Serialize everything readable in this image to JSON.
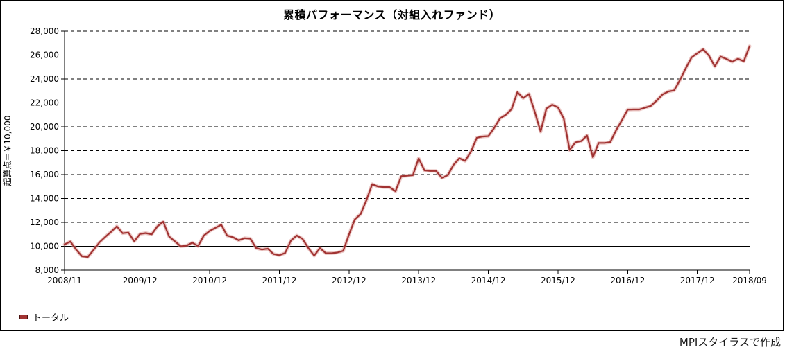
{
  "window": {
    "footer_credit": "MPIスタイラスで作成"
  },
  "chart": {
    "title": "累積パフォーマンス（対組入れファンド）",
    "y_axis_label": "起算点＝￥10,000",
    "legend": [
      {
        "label": "トータル",
        "color": "#a13332"
      }
    ],
    "colors": {
      "line": "#a13332",
      "line_glow": "#dc9b97",
      "grid": "#000000",
      "text": "#000000"
    }
  },
  "chart_data": {
    "type": "line",
    "title": "累積パフォーマンス（対組入れファンド）",
    "xlabel": "",
    "ylabel": "起算点＝￥10,000",
    "x_start": "2008/11",
    "x_end": "2018/09",
    "frequency": "monthly",
    "ylim": [
      8000,
      28000
    ],
    "baseline_value": 10000,
    "grid": "dashed-horizontal",
    "legend_position": "bottom-left",
    "y_ticks": [
      {
        "value": 28000,
        "label": "28,000"
      },
      {
        "value": 26000,
        "label": "26,000"
      },
      {
        "value": 24000,
        "label": "24,000"
      },
      {
        "value": 22000,
        "label": "22,000"
      },
      {
        "value": 20000,
        "label": "20,000"
      },
      {
        "value": 18000,
        "label": "18,000"
      },
      {
        "value": 16000,
        "label": "16,000"
      },
      {
        "value": 14000,
        "label": "14,000"
      },
      {
        "value": 12000,
        "label": "12,000"
      },
      {
        "value": 10000,
        "label": "10,000"
      },
      {
        "value": 8000,
        "label": "8,000"
      }
    ],
    "x_ticks": [
      {
        "index": 0,
        "label": "2008/11"
      },
      {
        "index": 13,
        "label": "2009/12"
      },
      {
        "index": 25,
        "label": "2010/12"
      },
      {
        "index": 37,
        "label": "2011/12"
      },
      {
        "index": 49,
        "label": "2012/12"
      },
      {
        "index": 61,
        "label": "2013/12"
      },
      {
        "index": 73,
        "label": "2014/12"
      },
      {
        "index": 85,
        "label": "2015/12"
      },
      {
        "index": 97,
        "label": "2016/12"
      },
      {
        "index": 109,
        "label": "2017/12"
      },
      {
        "index": 118,
        "label": "2018/09"
      }
    ],
    "series": [
      {
        "name": "トータル",
        "color": "#a13332",
        "values": [
          10150,
          10400,
          9720,
          9160,
          9100,
          9700,
          10320,
          10780,
          11200,
          11670,
          11090,
          11150,
          10420,
          11030,
          11100,
          11000,
          11670,
          12060,
          10820,
          10420,
          10000,
          10050,
          10300,
          10020,
          10900,
          11280,
          11550,
          11800,
          10890,
          10760,
          10500,
          10680,
          10640,
          9850,
          9730,
          9800,
          9350,
          9250,
          9440,
          10480,
          10900,
          10620,
          9850,
          9220,
          9850,
          9420,
          9420,
          9480,
          9620,
          11000,
          12250,
          12700,
          13850,
          15200,
          15000,
          14950,
          14950,
          14600,
          15860,
          15900,
          15950,
          17350,
          16350,
          16300,
          16300,
          15730,
          15950,
          16800,
          17370,
          17140,
          17920,
          19080,
          19180,
          19220,
          19900,
          20700,
          21000,
          21480,
          22900,
          22400,
          22750,
          21240,
          19590,
          21520,
          21850,
          21620,
          20670,
          18050,
          18700,
          18800,
          19270,
          17450,
          18650,
          18650,
          18720,
          19700,
          20550,
          21430,
          21450,
          21450,
          21600,
          21750,
          22200,
          22700,
          22950,
          23050,
          23900,
          24900,
          25800,
          26150,
          26480,
          25960,
          25050,
          25880,
          25680,
          25440,
          25700,
          25480,
          26740
        ]
      }
    ]
  }
}
